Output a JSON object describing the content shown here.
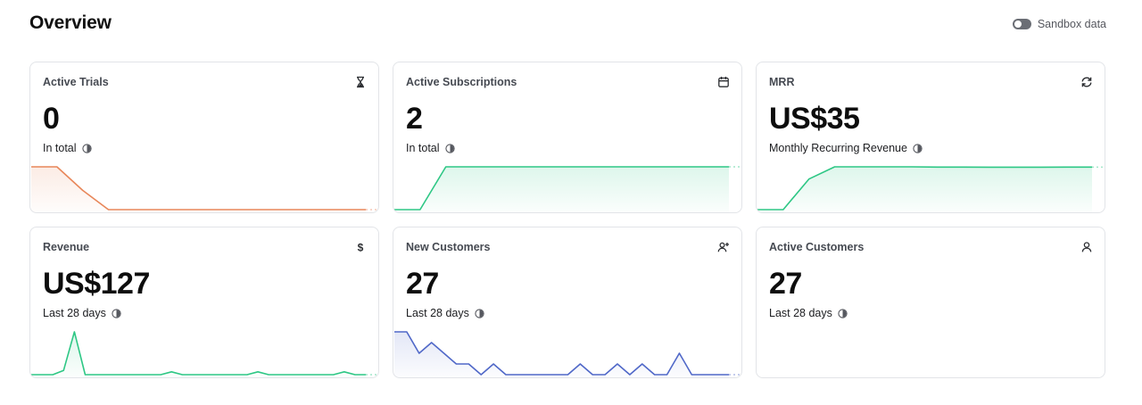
{
  "page": {
    "title": "Overview"
  },
  "sandbox": {
    "label": "Sandbox data",
    "enabled": false
  },
  "cards": [
    {
      "title": "Active Trials",
      "icon": "hourglass-icon",
      "value": "0",
      "subtitle": "In total",
      "color": "#e8875a",
      "trend": [
        1,
        1,
        0.45,
        0,
        0,
        0,
        0,
        0,
        0,
        0,
        0,
        0,
        0,
        0
      ]
    },
    {
      "title": "Active Subscriptions",
      "icon": "calendar-icon",
      "value": "2",
      "subtitle": "In total",
      "color": "#2ec785",
      "trend": [
        0,
        0,
        2,
        2,
        2,
        2,
        2,
        2,
        2,
        2,
        2,
        2,
        2,
        2
      ]
    },
    {
      "title": "MRR",
      "icon": "refresh-icon",
      "value": "US$35",
      "subtitle": "Monthly Recurring Revenue",
      "color": "#2ec785",
      "trend": [
        0,
        0,
        25,
        35,
        35,
        35,
        35,
        34.8,
        34.8,
        34.7,
        34.7,
        34.7,
        34.8,
        34.8
      ]
    },
    {
      "title": "Revenue",
      "icon": "dollar-icon",
      "value": "US$127",
      "subtitle": "Last 28 days",
      "color": "#2ec785",
      "trend": [
        0,
        0,
        0,
        3,
        30,
        0,
        0,
        0,
        0,
        0,
        0,
        0,
        0,
        2,
        0,
        0,
        0,
        0,
        0,
        0,
        0,
        2,
        0,
        0,
        0,
        0,
        0,
        0,
        0,
        2,
        0,
        0
      ]
    },
    {
      "title": "New Customers",
      "icon": "user-plus-icon",
      "value": "27",
      "subtitle": "Last 28 days",
      "color": "#5068c8",
      "trend": [
        4,
        4,
        2,
        3,
        2,
        1,
        1,
        0,
        1,
        0,
        0,
        0,
        0,
        0,
        0,
        1,
        0,
        0,
        1,
        0,
        1,
        0,
        0,
        2,
        0,
        0,
        0,
        0
      ]
    },
    {
      "title": "Active Customers",
      "icon": "user-icon",
      "value": "27",
      "subtitle": "Last 28 days",
      "color": "#2ec785",
      "trend": []
    }
  ]
}
